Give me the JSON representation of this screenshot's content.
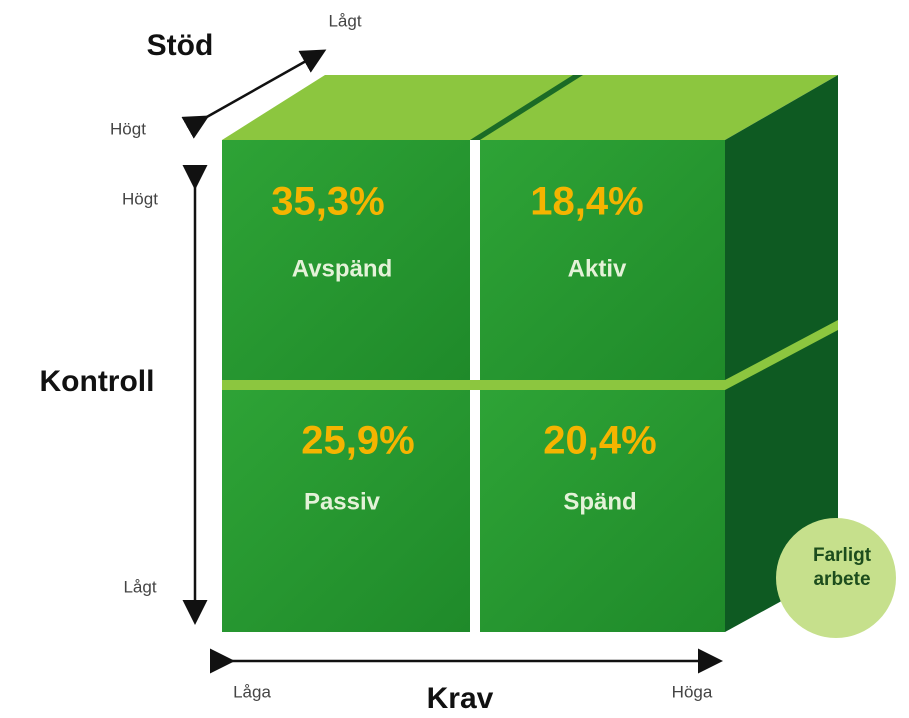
{
  "axes": {
    "stod": {
      "title": "Stöd",
      "low": "Lågt",
      "high": "Högt"
    },
    "kontroll": {
      "title": "Kontroll",
      "high": "Högt",
      "low": "Lågt"
    },
    "krav": {
      "title": "Krav",
      "low": "Låga",
      "high": "Höga"
    }
  },
  "cells": [
    {
      "value": "35,3%",
      "label": "Avspänd"
    },
    {
      "value": "18,4%",
      "label": "Aktiv"
    },
    {
      "value": "25,9%",
      "label": "Passiv"
    },
    {
      "value": "20,4%",
      "label": "Spänd"
    }
  ],
  "badge": {
    "line1": "Farligt",
    "line2": "arbete"
  }
}
